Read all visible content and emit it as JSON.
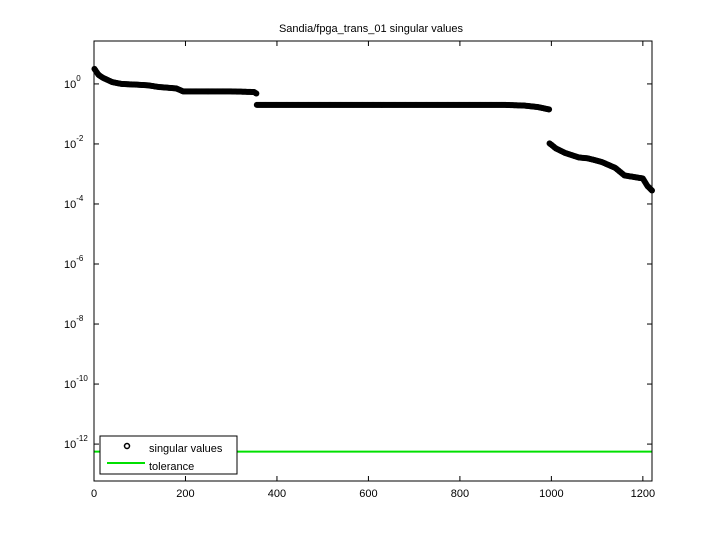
{
  "chart_data": {
    "type": "scatter",
    "title": "Sandia/fpga_trans_01 singular values",
    "xlabel": "",
    "ylabel": "",
    "xlim": [
      0,
      1220
    ],
    "ylim_log10": [
      -13.23,
      1.43
    ],
    "yscale": "log",
    "grid": false,
    "legend_position": "lower left",
    "x_ticks": [
      0,
      200,
      400,
      600,
      800,
      1000,
      1200
    ],
    "y_ticks": [
      {
        "exp": 0,
        "label": "10",
        "sup": "0"
      },
      {
        "exp": -2,
        "label": "10",
        "sup": "-2"
      },
      {
        "exp": -4,
        "label": "10",
        "sup": "-4"
      },
      {
        "exp": -6,
        "label": "10",
        "sup": "-6"
      },
      {
        "exp": -8,
        "label": "10",
        "sup": "-8"
      },
      {
        "exp": -10,
        "label": "10",
        "sup": "-10"
      },
      {
        "exp": -12,
        "label": "10",
        "sup": "-12"
      }
    ],
    "series": [
      {
        "name": "singular values",
        "marker": "circle",
        "color": "#000000",
        "points_log10": [
          [
            1,
            0.5
          ],
          [
            10,
            0.3
          ],
          [
            20,
            0.2
          ],
          [
            40,
            0.06
          ],
          [
            60,
            0.0
          ],
          [
            100,
            -0.03
          ],
          [
            120,
            -0.05
          ],
          [
            140,
            -0.1
          ],
          [
            180,
            -0.15
          ],
          [
            195,
            -0.25
          ],
          [
            250,
            -0.25
          ],
          [
            300,
            -0.25
          ],
          [
            350,
            -0.27
          ],
          [
            355,
            -0.32
          ],
          [
            356,
            -0.7
          ],
          [
            400,
            -0.7
          ],
          [
            500,
            -0.7
          ],
          [
            600,
            -0.7
          ],
          [
            700,
            -0.7
          ],
          [
            800,
            -0.7
          ],
          [
            900,
            -0.7
          ],
          [
            940,
            -0.72
          ],
          [
            970,
            -0.77
          ],
          [
            995,
            -0.85
          ],
          [
            996,
            -1.98
          ],
          [
            1010,
            -2.15
          ],
          [
            1030,
            -2.3
          ],
          [
            1060,
            -2.45
          ],
          [
            1080,
            -2.48
          ],
          [
            1110,
            -2.6
          ],
          [
            1140,
            -2.8
          ],
          [
            1160,
            -3.05
          ],
          [
            1180,
            -3.1
          ],
          [
            1200,
            -3.15
          ],
          [
            1210,
            -3.4
          ],
          [
            1220,
            -3.55
          ]
        ]
      },
      {
        "name": "tolerance",
        "color": "#00e000",
        "value_log10": -12.25
      }
    ]
  },
  "legend": {
    "items": [
      {
        "label": "singular values"
      },
      {
        "label": "tolerance"
      }
    ]
  }
}
